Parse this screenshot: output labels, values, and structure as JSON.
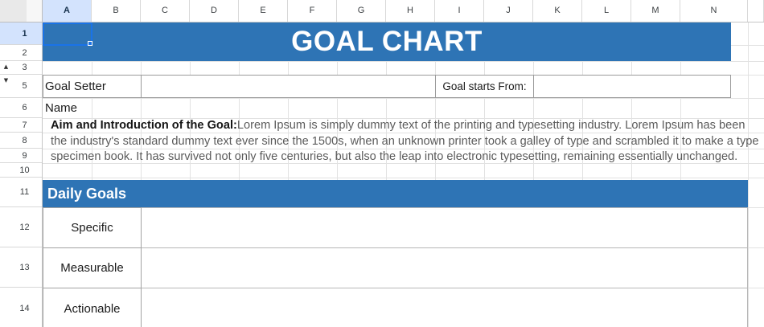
{
  "app": {
    "type": "spreadsheet-goal-chart-template"
  },
  "column_headers": [
    "A",
    "B",
    "C",
    "D",
    "E",
    "F",
    "G",
    "H",
    "I",
    "J",
    "K",
    "L",
    "M",
    "N"
  ],
  "row_headers": [
    "1",
    "2",
    "3",
    "5",
    "6",
    "7",
    "8",
    "9",
    "10",
    "11",
    "12",
    "13",
    "14"
  ],
  "selected_cell": "A1",
  "title": "GOAL CHART",
  "form": {
    "goal_setter_label": "Goal Setter Name",
    "goal_setter_value": "",
    "goal_starts_label": "Goal starts From:",
    "goal_starts_value": ""
  },
  "intro": {
    "heading": "Aim and Introduction of the Goal:",
    "line1": "Lorem Ipsum is simply dummy text of the printing and typesetting industry. Lorem Ipsum has been",
    "line2": "the industry's standard dummy text ever since the 1500s, when an unknown printer took a galley of type and scrambled it to make a type",
    "line3": "specimen book. It has survived not only five centuries, but also the leap into electronic typesetting, remaining essentially unchanged."
  },
  "daily_goals": {
    "header": "Daily Goals",
    "row_labels": [
      "Specific",
      "Measurable",
      "Actionable"
    ],
    "row_values": [
      "",
      "",
      ""
    ]
  },
  "colors": {
    "accent_blue": "#2e74b5",
    "selection_blue": "#1a73e8",
    "selected_header_bg": "#d3e3fd",
    "gridline": "#e2e2e2"
  }
}
